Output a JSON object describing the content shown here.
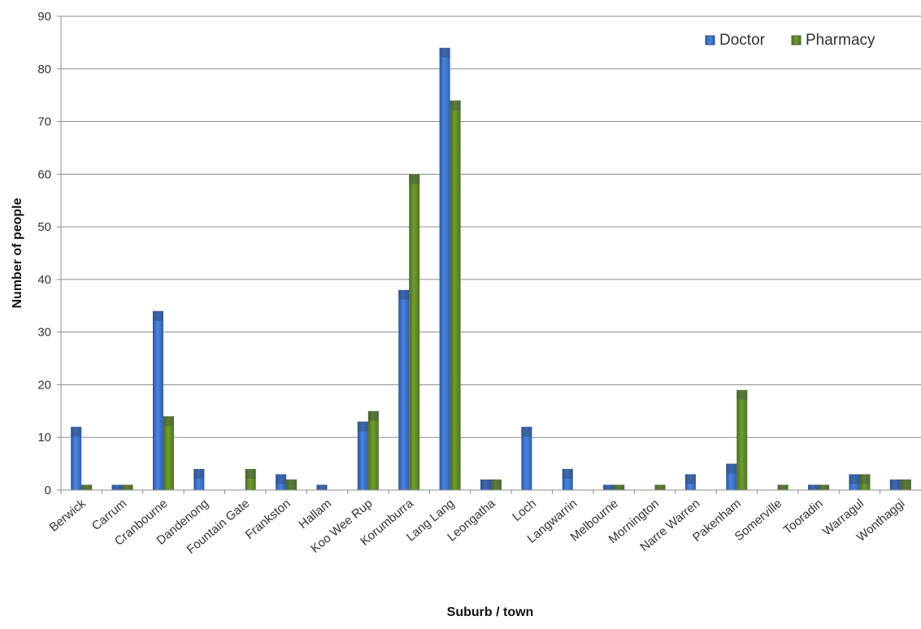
{
  "chart_data": {
    "type": "bar",
    "title": "",
    "xlabel": "Suburb / town",
    "ylabel": "Number of people",
    "ylim": [
      0,
      90
    ],
    "ytick_step": 10,
    "grid": true,
    "legend_position": "top-right",
    "categories": [
      "Berwick",
      "Carrum",
      "Cranbourne",
      "Dandenong",
      "Fountain Gate",
      "Frankston",
      "Hallam",
      "Koo Wee Rup",
      "Korumburra",
      "Lang Lang",
      "Leongatha",
      "Loch",
      "Langwarrin",
      "Melbourne",
      "Mornington",
      "Narre Warren",
      "Pakenham",
      "Somerville",
      "Tooradin",
      "Warragul",
      "Wonthaggi"
    ],
    "series": [
      {
        "name": "Doctor",
        "color": "#3f6fc2",
        "values": [
          12,
          1,
          34,
          4,
          0,
          3,
          1,
          13,
          38,
          84,
          2,
          12,
          4,
          1,
          0,
          3,
          5,
          0,
          1,
          3,
          2
        ]
      },
      {
        "name": "Pharmacy",
        "color": "#5e8a2c",
        "values": [
          1,
          1,
          14,
          0,
          4,
          2,
          0,
          15,
          60,
          74,
          2,
          0,
          0,
          1,
          1,
          0,
          19,
          1,
          1,
          3,
          2
        ]
      }
    ]
  }
}
